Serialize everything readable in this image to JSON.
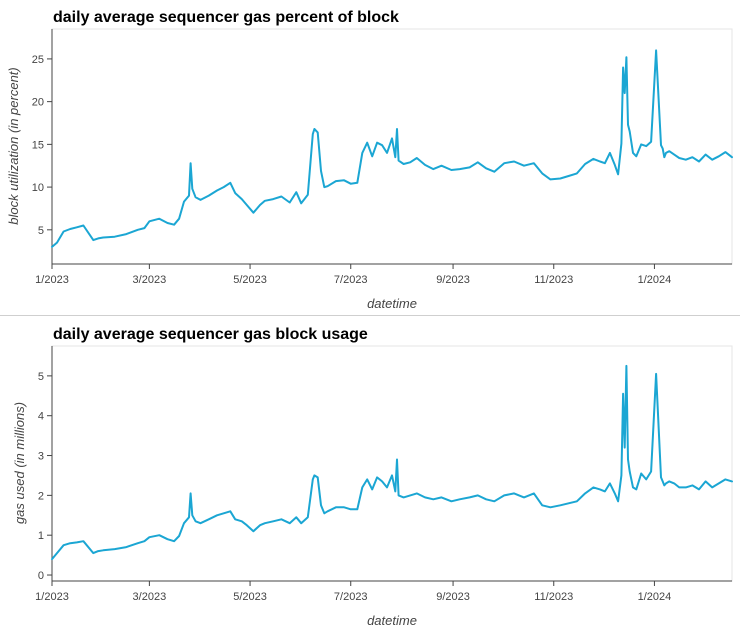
{
  "line_color": "#1ba6d3",
  "chart_data": [
    {
      "type": "line",
      "title": "daily average sequencer gas percent of block",
      "xlabel": "datetime",
      "ylabel": "block utilization (in percent)",
      "x_ticks": [
        {
          "date": "2023-01-01",
          "label": "1/2023"
        },
        {
          "date": "2023-03-01",
          "label": "3/2023"
        },
        {
          "date": "2023-05-01",
          "label": "5/2023"
        },
        {
          "date": "2023-07-01",
          "label": "7/2023"
        },
        {
          "date": "2023-09-01",
          "label": "9/2023"
        },
        {
          "date": "2023-11-01",
          "label": "11/2023"
        },
        {
          "date": "2024-01-01",
          "label": "1/2024"
        }
      ],
      "y_ticks": [
        5,
        10,
        15,
        20,
        25
      ],
      "xlim": [
        "2023-01-01",
        "2024-02-17"
      ],
      "ylim": [
        1,
        28.5
      ],
      "grid": false,
      "series": [
        {
          "x": [
            "2023-01-01",
            "2023-01-04",
            "2023-01-08",
            "2023-01-12",
            "2023-01-16",
            "2023-01-20",
            "2023-01-26",
            "2023-01-29",
            "2023-02-01",
            "2023-02-08",
            "2023-02-15",
            "2023-02-22",
            "2023-02-26",
            "2023-03-01",
            "2023-03-07",
            "2023-03-12",
            "2023-03-16",
            "2023-03-19",
            "2023-03-22",
            "2023-03-25",
            "2023-03-26",
            "2023-03-27",
            "2023-03-29",
            "2023-04-01",
            "2023-04-06",
            "2023-04-11",
            "2023-04-15",
            "2023-04-19",
            "2023-04-22",
            "2023-04-26",
            "2023-04-29",
            "2023-05-03",
            "2023-05-07",
            "2023-05-10",
            "2023-05-15",
            "2023-05-20",
            "2023-05-25",
            "2023-05-29",
            "2023-06-01",
            "2023-06-05",
            "2023-06-08",
            "2023-06-09",
            "2023-06-11",
            "2023-06-13",
            "2023-06-15",
            "2023-06-17",
            "2023-06-22",
            "2023-06-27",
            "2023-07-01",
            "2023-07-05",
            "2023-07-08",
            "2023-07-11",
            "2023-07-14",
            "2023-07-17",
            "2023-07-20",
            "2023-07-23",
            "2023-07-26",
            "2023-07-28",
            "2023-07-29",
            "2023-07-30",
            "2023-08-02",
            "2023-08-06",
            "2023-08-10",
            "2023-08-15",
            "2023-08-20",
            "2023-08-25",
            "2023-08-31",
            "2023-09-05",
            "2023-09-11",
            "2023-09-16",
            "2023-09-21",
            "2023-09-26",
            "2023-10-02",
            "2023-10-08",
            "2023-10-14",
            "2023-10-20",
            "2023-10-25",
            "2023-10-30",
            "2023-11-05",
            "2023-11-10",
            "2023-11-15",
            "2023-11-20",
            "2023-11-25",
            "2023-11-29",
            "2023-12-02",
            "2023-12-05",
            "2023-12-08",
            "2023-12-10",
            "2023-12-12",
            "2023-12-13",
            "2023-12-14",
            "2023-12-15",
            "2023-12-16",
            "2023-12-17",
            "2023-12-19",
            "2023-12-21",
            "2023-12-24",
            "2023-12-27",
            "2023-12-30",
            "2024-01-02",
            "2024-01-05",
            "2024-01-06",
            "2024-01-07",
            "2024-01-08",
            "2024-01-10",
            "2024-01-13",
            "2024-01-16",
            "2024-01-20",
            "2024-01-24",
            "2024-01-28",
            "2024-02-01",
            "2024-02-05",
            "2024-02-09",
            "2024-02-13",
            "2024-02-17"
          ],
          "y": [
            3.0,
            3.5,
            4.8,
            5.1,
            5.3,
            5.5,
            3.8,
            4.0,
            4.1,
            4.2,
            4.5,
            5.0,
            5.2,
            6.0,
            6.3,
            5.8,
            5.6,
            6.3,
            8.3,
            9.0,
            12.8,
            9.8,
            8.8,
            8.5,
            9.0,
            9.6,
            10.0,
            10.5,
            9.3,
            8.6,
            7.9,
            7.0,
            7.9,
            8.4,
            8.6,
            8.9,
            8.2,
            9.4,
            8.1,
            9.1,
            16.2,
            16.8,
            16.4,
            11.9,
            10.0,
            10.1,
            10.7,
            10.8,
            10.4,
            10.5,
            14.0,
            15.2,
            13.6,
            15.2,
            14.9,
            14.0,
            15.7,
            13.5,
            16.8,
            13.1,
            12.7,
            12.9,
            13.4,
            12.6,
            12.1,
            12.5,
            12.0,
            12.1,
            12.3,
            12.9,
            12.2,
            11.8,
            12.8,
            13.0,
            12.5,
            12.8,
            11.6,
            10.9,
            11.0,
            11.3,
            11.6,
            12.7,
            13.3,
            13.0,
            12.8,
            14.0,
            12.6,
            11.5,
            15.1,
            24.0,
            21.0,
            25.2,
            17.3,
            16.5,
            14.0,
            13.6,
            15.0,
            14.8,
            15.3,
            26.0,
            14.9,
            14.5,
            13.5,
            14.0,
            14.2,
            13.8,
            13.4,
            13.2,
            13.5,
            13.0,
            13.8,
            13.2,
            13.6,
            14.1,
            13.5
          ]
        }
      ]
    },
    {
      "type": "line",
      "title": "daily average sequencer gas block usage",
      "xlabel": "datetime",
      "ylabel": "gas used (in millions)",
      "x_ticks": [
        {
          "date": "2023-01-01",
          "label": "1/2023"
        },
        {
          "date": "2023-03-01",
          "label": "3/2023"
        },
        {
          "date": "2023-05-01",
          "label": "5/2023"
        },
        {
          "date": "2023-07-01",
          "label": "7/2023"
        },
        {
          "date": "2023-09-01",
          "label": "9/2023"
        },
        {
          "date": "2023-11-01",
          "label": "11/2023"
        },
        {
          "date": "2024-01-01",
          "label": "1/2024"
        }
      ],
      "y_ticks": [
        0,
        1,
        2,
        3,
        4,
        5
      ],
      "xlim": [
        "2023-01-01",
        "2024-02-17"
      ],
      "ylim": [
        -0.15,
        5.75
      ],
      "grid": false,
      "series": [
        {
          "x": [
            "2023-01-01",
            "2023-01-04",
            "2023-01-08",
            "2023-01-12",
            "2023-01-16",
            "2023-01-20",
            "2023-01-26",
            "2023-01-29",
            "2023-02-01",
            "2023-02-08",
            "2023-02-15",
            "2023-02-22",
            "2023-02-26",
            "2023-03-01",
            "2023-03-07",
            "2023-03-12",
            "2023-03-16",
            "2023-03-19",
            "2023-03-22",
            "2023-03-25",
            "2023-03-26",
            "2023-03-27",
            "2023-03-29",
            "2023-04-01",
            "2023-04-06",
            "2023-04-11",
            "2023-04-15",
            "2023-04-19",
            "2023-04-22",
            "2023-04-26",
            "2023-04-29",
            "2023-05-03",
            "2023-05-07",
            "2023-05-10",
            "2023-05-15",
            "2023-05-20",
            "2023-05-25",
            "2023-05-29",
            "2023-06-01",
            "2023-06-05",
            "2023-06-08",
            "2023-06-09",
            "2023-06-11",
            "2023-06-13",
            "2023-06-15",
            "2023-06-17",
            "2023-06-22",
            "2023-06-27",
            "2023-07-01",
            "2023-07-05",
            "2023-07-08",
            "2023-07-11",
            "2023-07-14",
            "2023-07-17",
            "2023-07-20",
            "2023-07-23",
            "2023-07-26",
            "2023-07-28",
            "2023-07-29",
            "2023-07-30",
            "2023-08-02",
            "2023-08-06",
            "2023-08-10",
            "2023-08-15",
            "2023-08-20",
            "2023-08-25",
            "2023-08-31",
            "2023-09-05",
            "2023-09-11",
            "2023-09-16",
            "2023-09-21",
            "2023-09-26",
            "2023-10-02",
            "2023-10-08",
            "2023-10-14",
            "2023-10-20",
            "2023-10-25",
            "2023-10-30",
            "2023-11-05",
            "2023-11-10",
            "2023-11-15",
            "2023-11-20",
            "2023-11-25",
            "2023-11-29",
            "2023-12-02",
            "2023-12-05",
            "2023-12-08",
            "2023-12-10",
            "2023-12-12",
            "2023-12-13",
            "2023-12-14",
            "2023-12-15",
            "2023-12-16",
            "2023-12-17",
            "2023-12-19",
            "2023-12-21",
            "2023-12-24",
            "2023-12-27",
            "2023-12-30",
            "2024-01-02",
            "2024-01-05",
            "2024-01-06",
            "2024-01-07",
            "2024-01-08",
            "2024-01-10",
            "2024-01-13",
            "2024-01-16",
            "2024-01-20",
            "2024-01-24",
            "2024-01-28",
            "2024-02-01",
            "2024-02-05",
            "2024-02-09",
            "2024-02-13",
            "2024-02-17"
          ],
          "y": [
            0.4,
            0.55,
            0.75,
            0.8,
            0.82,
            0.85,
            0.55,
            0.6,
            0.62,
            0.65,
            0.7,
            0.8,
            0.85,
            0.95,
            1.0,
            0.9,
            0.85,
            0.98,
            1.3,
            1.45,
            2.05,
            1.5,
            1.35,
            1.3,
            1.4,
            1.5,
            1.55,
            1.6,
            1.4,
            1.35,
            1.25,
            1.1,
            1.25,
            1.3,
            1.35,
            1.4,
            1.3,
            1.45,
            1.3,
            1.45,
            2.4,
            2.5,
            2.45,
            1.75,
            1.55,
            1.6,
            1.7,
            1.7,
            1.65,
            1.65,
            2.2,
            2.4,
            2.15,
            2.45,
            2.35,
            2.2,
            2.5,
            2.1,
            2.9,
            2.0,
            1.95,
            2.0,
            2.05,
            1.95,
            1.9,
            1.95,
            1.85,
            1.9,
            1.95,
            2.0,
            1.9,
            1.85,
            2.0,
            2.05,
            1.95,
            2.05,
            1.75,
            1.7,
            1.75,
            1.8,
            1.85,
            2.05,
            2.2,
            2.15,
            2.1,
            2.3,
            2.05,
            1.85,
            2.5,
            4.55,
            3.2,
            5.25,
            2.9,
            2.6,
            2.2,
            2.15,
            2.55,
            2.4,
            2.6,
            5.05,
            2.45,
            2.35,
            2.25,
            2.3,
            2.35,
            2.3,
            2.2,
            2.2,
            2.25,
            2.15,
            2.35,
            2.2,
            2.3,
            2.4,
            2.35
          ]
        }
      ]
    }
  ]
}
